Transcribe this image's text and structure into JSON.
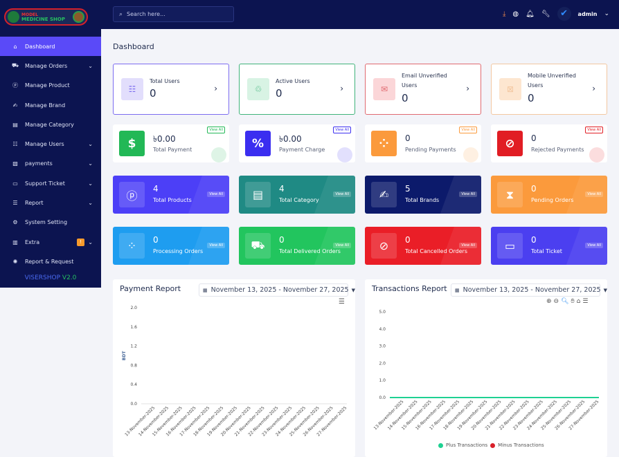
{
  "logo": {
    "line1": "MODEL",
    "line2": "MEDICINE SHOP"
  },
  "sidebar": {
    "items": [
      {
        "label": "Dashboard",
        "icon": "home-icon",
        "glyph": "⌂",
        "active": true
      },
      {
        "label": "Manage Orders",
        "icon": "truck-icon",
        "glyph": "⛟",
        "chev": true
      },
      {
        "label": "Manage Product",
        "icon": "product-icon",
        "glyph": "ⓟ"
      },
      {
        "label": "Manage Brand",
        "icon": "signature-icon",
        "glyph": "✍"
      },
      {
        "label": "Manage Category",
        "icon": "clipboard-icon",
        "glyph": "▤"
      },
      {
        "label": "Manage Users",
        "icon": "users-icon",
        "glyph": "☷",
        "chev": true
      },
      {
        "label": "payments",
        "icon": "invoice-icon",
        "glyph": "▧",
        "chev": true
      },
      {
        "label": "Support Ticket",
        "icon": "ticket-icon",
        "glyph": "▭",
        "chev": true
      },
      {
        "label": "Report",
        "icon": "list-icon",
        "glyph": "☰",
        "chev": true
      },
      {
        "label": "System Setting",
        "icon": "gear-icon",
        "glyph": "⚙"
      },
      {
        "label": "Extra",
        "icon": "extra-icon",
        "glyph": "▥",
        "chev": true,
        "badge": "!"
      },
      {
        "label": "Report & Request",
        "icon": "bug-icon",
        "glyph": "✺"
      }
    ],
    "version_name": "VISERSHOP",
    "version": "V2.0"
  },
  "header": {
    "search_placeholder": "Search here...",
    "user": "admin"
  },
  "page_title": "Dashboard",
  "user_cards": [
    {
      "label": "Total Users",
      "value": "0",
      "color": "#7c6cf0",
      "bg": "#e2defc",
      "glyph": "☷"
    },
    {
      "label": "Active Users",
      "value": "0",
      "color": "#3fb37a",
      "bg": "#d8f3e4",
      "glyph": "♲"
    },
    {
      "label": "Email Unverified Users",
      "value": "0",
      "color": "#e06a70",
      "bg": "#fbd6d8",
      "glyph": "✉"
    },
    {
      "label": "Mobile Unverified Users",
      "value": "0",
      "color": "#f3c7a0",
      "bg": "#fde6d0",
      "glyph": "⊠"
    }
  ],
  "payment_cards": [
    {
      "label": "Total Payment",
      "value": "৳0.00",
      "color": "#22b856",
      "glyph": "$"
    },
    {
      "label": "Payment Charge",
      "value": "৳0.00",
      "color": "#3b2ef0",
      "glyph": "%"
    },
    {
      "label": "Pending Payments",
      "value": "0",
      "color": "#fb9a3c",
      "glyph": "⁘"
    },
    {
      "label": "Rejected Payments",
      "value": "0",
      "color": "#e11d24",
      "glyph": "⊘"
    }
  ],
  "view_all": "View All",
  "stat_cards": [
    {
      "label": "Total Products",
      "value": "4",
      "color": "#4c3ff7",
      "glyph": "ⓟ"
    },
    {
      "label": "Total Category",
      "value": "4",
      "color": "#1f8a84",
      "glyph": "▤"
    },
    {
      "label": "Total Brands",
      "value": "5",
      "color": "#0c1a6b",
      "glyph": "✍"
    },
    {
      "label": "Pending Orders",
      "value": "0",
      "color": "#fb9a3c",
      "glyph": "⧗"
    },
    {
      "label": "Processing Orders",
      "value": "0",
      "color": "#1e9df0",
      "glyph": "⁘"
    },
    {
      "label": "Total Delivered Orders",
      "value": "0",
      "color": "#22c55e",
      "glyph": "⛟"
    },
    {
      "label": "Total Cancelled Orders",
      "value": "0",
      "color": "#ea1e27",
      "glyph": "⊘"
    },
    {
      "label": "Total Ticket",
      "value": "0",
      "color": "#4b3ff0",
      "glyph": "▭"
    }
  ],
  "chart_data": [
    {
      "type": "line",
      "title": "Payment Report",
      "date_range": "November 13, 2025 - November 27, 2025",
      "ylabel": "BDT",
      "ylim": [
        0,
        2
      ],
      "yticks": [
        "0.0",
        "0.4",
        "0.8",
        "1.2",
        "1.6",
        "2.0"
      ],
      "categories": [
        "13-November-2025",
        "14-November-2025",
        "15-November-2025",
        "16-November-2025",
        "17-November-2025",
        "18-November-2025",
        "19-November-2025",
        "20-November-2025",
        "21-November-2025",
        "22-November-2025",
        "23-November-2025",
        "24-November-2025",
        "25-November-2025",
        "26-November-2025",
        "27-November-2025"
      ],
      "series": []
    },
    {
      "type": "line",
      "title": "Transactions Report",
      "date_range": "November 13, 2025 - November 27, 2025",
      "ylim": [
        0,
        5
      ],
      "yticks": [
        "0.0",
        "1.0",
        "2.0",
        "3.0",
        "4.0",
        "5.0"
      ],
      "categories": [
        "13-November-2025",
        "14-November-2025",
        "15-November-2025",
        "16-November-2025",
        "17-November-2025",
        "18-November-2025",
        "19-November-2025",
        "20-November-2025",
        "21-November-2025",
        "22-November-2025",
        "23-November-2025",
        "24-November-2025",
        "25-November-2025",
        "26-November-2025",
        "27-November-2025"
      ],
      "series": [
        {
          "name": "Plus Transactions",
          "color": "#1ed192",
          "values": [
            0,
            0,
            0,
            0,
            0,
            0,
            0,
            0,
            0,
            0,
            0,
            0,
            0,
            0,
            0
          ]
        },
        {
          "name": "Minus Transactions",
          "color": "#d9202a",
          "values": [
            0,
            0,
            0,
            0,
            0,
            0,
            0,
            0,
            0,
            0,
            0,
            0,
            0,
            0,
            0
          ]
        }
      ]
    }
  ]
}
